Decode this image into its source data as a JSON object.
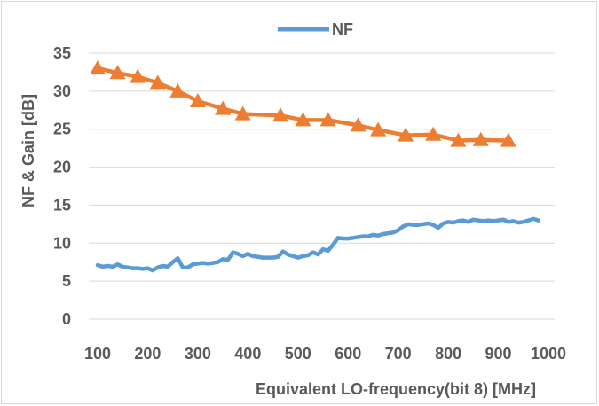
{
  "chart_data": {
    "type": "line",
    "xlabel": "Equivalent LO-frequency(bit 8) [MHz]",
    "ylabel": "NF & Gain [dB]",
    "xlim": [
      100,
      1000
    ],
    "ylim": [
      0,
      35
    ],
    "xticks": [
      100,
      200,
      300,
      400,
      500,
      600,
      700,
      800,
      900,
      1000
    ],
    "yticks": [
      0,
      5,
      10,
      15,
      20,
      25,
      30,
      35
    ],
    "grid": "horizontal",
    "legend_position": "top",
    "series": [
      {
        "name": "NF",
        "color": "#5b9bd5",
        "marker": "none",
        "x": [
          100,
          110,
          120,
          130,
          140,
          150,
          160,
          170,
          180,
          190,
          200,
          210,
          220,
          230,
          240,
          250,
          260,
          270,
          280,
          290,
          300,
          310,
          320,
          330,
          340,
          350,
          360,
          370,
          380,
          390,
          400,
          410,
          420,
          430,
          440,
          450,
          460,
          470,
          480,
          490,
          500,
          510,
          520,
          530,
          540,
          550,
          560,
          570,
          580,
          590,
          600,
          610,
          620,
          630,
          640,
          650,
          660,
          670,
          680,
          690,
          700,
          710,
          720,
          730,
          740,
          750,
          760,
          770,
          780,
          790,
          800,
          810,
          820,
          830,
          840,
          850,
          860,
          870,
          880,
          890,
          900,
          910,
          920,
          930,
          940,
          950,
          960,
          970,
          980
        ],
        "values": [
          7.1,
          6.9,
          7.0,
          6.9,
          7.2,
          6.9,
          6.8,
          6.7,
          6.7,
          6.6,
          6.7,
          6.4,
          6.8,
          7.0,
          6.9,
          7.5,
          8.0,
          6.8,
          6.8,
          7.2,
          7.3,
          7.4,
          7.3,
          7.4,
          7.5,
          7.9,
          7.8,
          8.8,
          8.6,
          8.3,
          8.6,
          8.3,
          8.2,
          8.1,
          8.1,
          8.1,
          8.2,
          8.9,
          8.5,
          8.3,
          8.1,
          8.3,
          8.4,
          8.8,
          8.5,
          9.2,
          9.0,
          9.8,
          10.7,
          10.6,
          10.6,
          10.7,
          10.8,
          10.9,
          10.9,
          11.1,
          11.0,
          11.2,
          11.3,
          11.4,
          11.7,
          12.2,
          12.5,
          12.4,
          12.4,
          12.5,
          12.6,
          12.4,
          12.0,
          12.6,
          12.8,
          12.7,
          12.9,
          13.0,
          12.8,
          13.1,
          13.0,
          12.9,
          13.0,
          12.9,
          13.0,
          13.1,
          12.8,
          12.9,
          12.7,
          12.8,
          13.0,
          13.2,
          13.0
        ]
      },
      {
        "name": "",
        "color": "#ed7d31",
        "marker": "triangle",
        "x": [
          100,
          140,
          180,
          220,
          260,
          300,
          350,
          390,
          465,
          510,
          560,
          620,
          660,
          715,
          770,
          820,
          865,
          920
        ],
        "values": [
          33.0,
          32.4,
          31.9,
          31.1,
          30.0,
          28.7,
          27.7,
          27.0,
          26.8,
          26.2,
          26.2,
          25.5,
          24.9,
          24.2,
          24.3,
          23.5,
          23.6,
          23.5
        ]
      }
    ]
  }
}
